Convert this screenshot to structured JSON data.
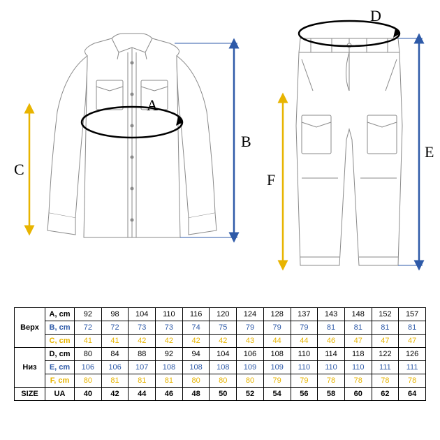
{
  "diagram": {
    "labels": {
      "A": "A",
      "B": "B",
      "C": "C",
      "D": "D",
      "E": "E",
      "F": "F"
    },
    "label_font_size": 22,
    "label_font_family": "serif",
    "garment_stroke": "#8a8a8a",
    "garment_stroke_width": 1,
    "garment_fill": "#ffffff",
    "arrow_blue": "#2e5aa8",
    "arrow_yellow": "#e8b400",
    "arrow_width": 2.5
  },
  "table": {
    "group_top_label": "Верх",
    "group_bottom_label": "Низ",
    "size_row_label": "SIZE",
    "size_row_sub": "UA",
    "row_labels": [
      "A, cm",
      "B, cm",
      "C, cm",
      "D, cm",
      "E, cm",
      "F, cm"
    ],
    "row_colors": [
      "#000000",
      "#2e5aa8",
      "#e8b400",
      "#000000",
      "#2e5aa8",
      "#e8b400"
    ],
    "sizes": [
      "40",
      "42",
      "44",
      "46",
      "48",
      "50",
      "52",
      "54",
      "56",
      "58",
      "60",
      "62",
      "64"
    ],
    "values": {
      "A": [
        "92",
        "98",
        "104",
        "110",
        "116",
        "120",
        "124",
        "128",
        "137",
        "143",
        "148",
        "152",
        "157"
      ],
      "B": [
        "72",
        "72",
        "73",
        "73",
        "74",
        "75",
        "79",
        "79",
        "79",
        "81",
        "81",
        "81",
        "81"
      ],
      "C": [
        "41",
        "41",
        "42",
        "42",
        "42",
        "42",
        "43",
        "44",
        "44",
        "46",
        "47",
        "47",
        "47"
      ],
      "D": [
        "80",
        "84",
        "88",
        "92",
        "94",
        "104",
        "106",
        "108",
        "110",
        "114",
        "118",
        "122",
        "126"
      ],
      "E": [
        "106",
        "106",
        "107",
        "108",
        "108",
        "108",
        "109",
        "109",
        "110",
        "110",
        "110",
        "111",
        "111"
      ],
      "F": [
        "80",
        "81",
        "81",
        "81",
        "80",
        "80",
        "80",
        "79",
        "79",
        "78",
        "78",
        "78",
        "78"
      ]
    },
    "cell_font_size": 11,
    "header_bg": "#ffffff",
    "size_row_color": "#000000"
  }
}
